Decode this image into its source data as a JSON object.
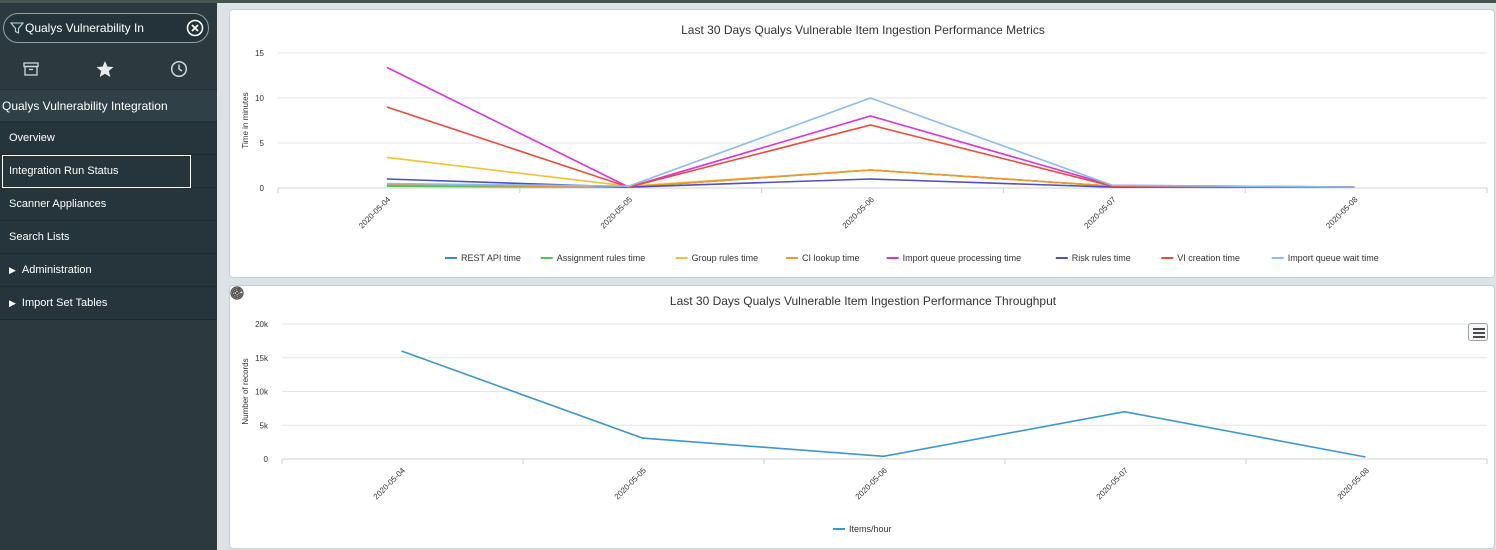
{
  "sidebar": {
    "filter": {
      "value": "Qualys Vulnerability In"
    },
    "tabs": [
      {
        "icon": "archive-icon"
      },
      {
        "icon": "star-icon"
      },
      {
        "icon": "clock-icon"
      }
    ],
    "header": "Qualys Vulnerability Integration",
    "items": [
      {
        "label": "Overview"
      },
      {
        "label": "Integration Run Status"
      },
      {
        "label": "Scanner Appliances"
      },
      {
        "label": "Search Lists"
      },
      {
        "label": "Administration"
      },
      {
        "label": "Import Set Tables"
      }
    ],
    "selected_index": 1
  },
  "chart_data": [
    {
      "type": "line",
      "title": "Last 30 Days Qualys Vulnerable Item Ingestion Performance Metrics",
      "ylabel": "Time in minutes",
      "xlabel": "",
      "categories": [
        "2020-05-04",
        "2020-05-05",
        "2020-05-06",
        "2020-05-07",
        "2020-05-08"
      ],
      "ylim": [
        0,
        15
      ],
      "yticks": [
        0,
        5,
        10,
        15
      ],
      "grid": true,
      "legend": "bottom",
      "series": [
        {
          "name": "REST API time",
          "color": "#3a8ed0",
          "values": [
            0.3,
            0.1,
            2.0,
            0.2,
            0.1
          ]
        },
        {
          "name": "Assignment rules time",
          "color": "#55c25b",
          "values": [
            0.2,
            0.1,
            2.0,
            0.2,
            0.1
          ]
        },
        {
          "name": "Group rules time",
          "color": "#f2c233",
          "values": [
            3.4,
            0.2,
            2.0,
            0.2,
            0.1
          ]
        },
        {
          "name": "CI lookup time",
          "color": "#f0962e",
          "values": [
            0.4,
            0.1,
            2.0,
            0.2,
            0.1
          ]
        },
        {
          "name": "Import queue processing time",
          "color": "#d834dc",
          "values": [
            13.4,
            0.1,
            8.0,
            0.3,
            0.1
          ]
        },
        {
          "name": "Risk rules time",
          "color": "#4e4fc2",
          "values": [
            1.0,
            0.1,
            1.0,
            0.1,
            0.1
          ]
        },
        {
          "name": "VI creation time",
          "color": "#ee4a3a",
          "values": [
            9.0,
            0.1,
            7.0,
            0.2,
            0.1
          ]
        },
        {
          "name": "Import queue wait time",
          "color": "#8dbcf0",
          "values": [
            0.5,
            0.2,
            10.0,
            0.3,
            0.1
          ]
        }
      ]
    },
    {
      "type": "line",
      "title": "Last 30 Days Qualys Vulnerable Item Ingestion Performance Throughput",
      "ylabel": "Number of records",
      "xlabel": "",
      "categories": [
        "2020-05-04",
        "2020-05-05",
        "2020-05-06",
        "2020-05-07",
        "2020-05-08"
      ],
      "ylim": [
        0,
        20000
      ],
      "yticks": [
        0,
        5000,
        10000,
        15000,
        20000
      ],
      "ytick_labels": [
        "0",
        "5k",
        "10k",
        "15k",
        "20k"
      ],
      "grid": true,
      "legend": "bottom",
      "series": [
        {
          "name": "Items/hour",
          "color": "#3b97d3",
          "values": [
            16000,
            3100,
            400,
            7000,
            300
          ]
        }
      ]
    }
  ],
  "panel2_tools": [
    {
      "icon": "refresh-icon"
    },
    {
      "icon": "gear-icon"
    },
    {
      "icon": "help-icon"
    },
    {
      "icon": "close-icon"
    }
  ]
}
